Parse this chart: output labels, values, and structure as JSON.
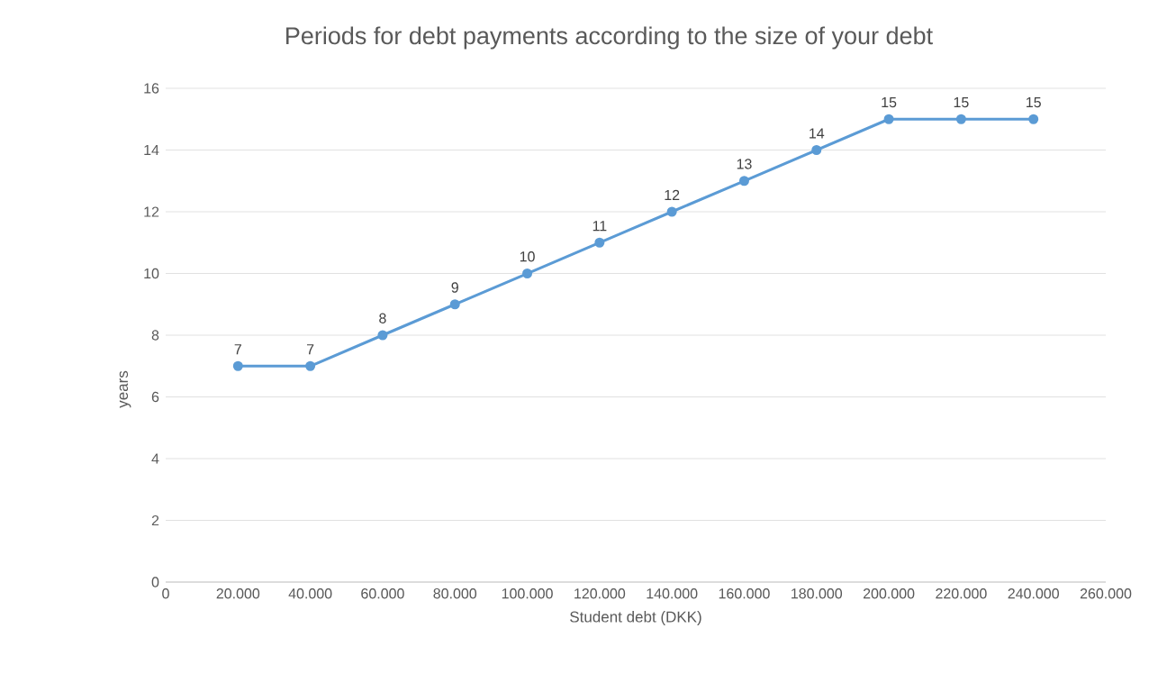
{
  "chart_data": {
    "type": "line",
    "title": "Periods for debt payments according to the size of your debt",
    "xlabel": "Student debt (DKK)",
    "ylabel": "years",
    "x": [
      20000,
      40000,
      60000,
      80000,
      100000,
      120000,
      140000,
      160000,
      180000,
      200000,
      220000,
      240000
    ],
    "values": [
      7,
      7,
      8,
      9,
      10,
      11,
      12,
      13,
      14,
      15,
      15,
      15
    ],
    "color": "#5b9bd5",
    "marker": "circle",
    "line_style": "solid",
    "data_labels": true,
    "grid": "y",
    "xlim": [
      0,
      260000
    ],
    "xticks": [
      0,
      {
        "value": 20000,
        "label": "20.000"
      },
      {
        "value": 40000,
        "label": "40.000"
      },
      {
        "value": 60000,
        "label": "60.000"
      },
      {
        "value": 80000,
        "label": "80.000"
      },
      {
        "value": 100000,
        "label": "100.000"
      },
      {
        "value": 120000,
        "label": "120.000"
      },
      {
        "value": 140000,
        "label": "140.000"
      },
      {
        "value": 160000,
        "label": "160.000"
      },
      {
        "value": 180000,
        "label": "180.000"
      },
      {
        "value": 200000,
        "label": "200.000"
      },
      {
        "value": 220000,
        "label": "220.000"
      },
      {
        "value": 240000,
        "label": "240.000"
      },
      {
        "value": 260000,
        "label": "260.000"
      }
    ],
    "ylim": [
      0,
      16
    ],
    "yticks": [
      0,
      2,
      4,
      6,
      8,
      10,
      12,
      14,
      16
    ]
  }
}
